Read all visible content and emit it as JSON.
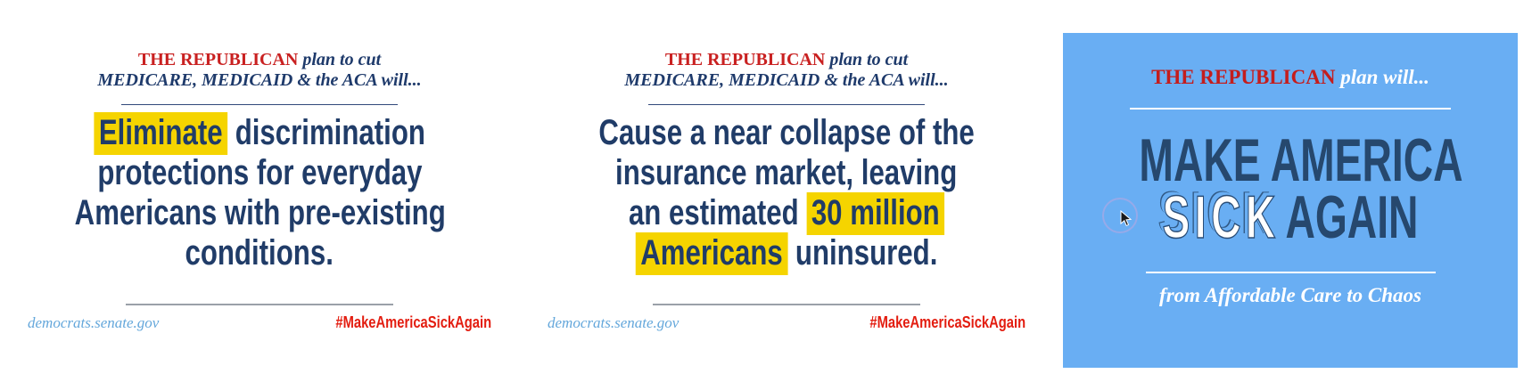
{
  "colors": {
    "header_red": "#c92121",
    "navy_text": "#203c68",
    "highlight_yellow": "#f5d400",
    "site_blue": "#64a7db",
    "hashtag_red": "#e31d10",
    "poster_blue_bg": "#69aef3",
    "poster_navy": "#26486e",
    "poster_white": "#ffffff"
  },
  "cards": [
    {
      "header": {
        "emphasis": "THE REPUBLICAN",
        "rest": "plan to cut",
        "line2": "MEDICARE, MEDICAID & the ACA will..."
      },
      "headline": [
        [
          {
            "t": "Eliminate",
            "h": true
          },
          {
            "t": " discrimination",
            "h": false
          }
        ],
        [
          {
            "t": "protections for everyday",
            "h": false
          }
        ],
        [
          {
            "t": "Americans with pre-existing",
            "h": false
          }
        ],
        [
          {
            "t": "conditions.",
            "h": false
          }
        ]
      ],
      "footer": {
        "site": "democrats.senate.gov",
        "hashtag": "#MakeAmericaSickAgain"
      }
    },
    {
      "header": {
        "emphasis": "THE REPUBLICAN",
        "rest": "plan to cut",
        "line2": "MEDICARE, MEDICAID & the ACA will..."
      },
      "headline": [
        [
          {
            "t": "Cause a near collapse of the",
            "h": false
          }
        ],
        [
          {
            "t": "insurance market, leaving",
            "h": false
          }
        ],
        [
          {
            "t": "an estimated ",
            "h": false
          },
          {
            "t": "30 million",
            "h": true
          }
        ],
        [
          {
            "t": "Americans",
            "h": true
          },
          {
            "t": " uninsured.",
            "h": false
          }
        ]
      ],
      "footer": {
        "site": "democrats.senate.gov",
        "hashtag": "#MakeAmericaSickAgain"
      }
    }
  ],
  "blue_card": {
    "header": {
      "emphasis": "THE REPUBLICAN",
      "rest": "plan will..."
    },
    "lines": {
      "make": "MAKE AMERICA",
      "sick": "SICK",
      "again": "AGAIN"
    },
    "tagline": "from Affordable Care to Chaos"
  }
}
